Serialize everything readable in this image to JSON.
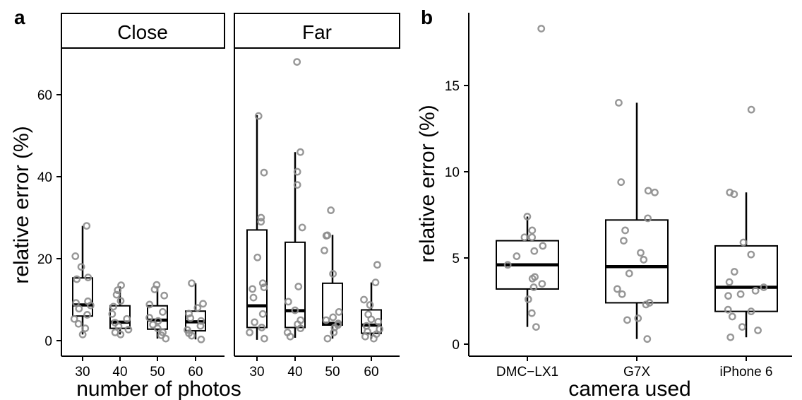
{
  "chart_data": [
    {
      "panel": "a",
      "type": "boxplot",
      "xlabel": "number of photos",
      "ylabel": "relative error (%)",
      "ylim": [
        -2,
        71
      ],
      "yticks": [
        0,
        20,
        40,
        60
      ],
      "grid": false,
      "facets": [
        {
          "label": "Close",
          "categories": [
            "30",
            "40",
            "50",
            "60"
          ],
          "boxes": [
            {
              "q1": 6.0,
              "median": 8.7,
              "q3": 15.3,
              "whisker_low": 1.5,
              "whisker_high": 28.0,
              "points": [
                28.0,
                20.6,
                18.0,
                15.4,
                15.0,
                9.6,
                9.2,
                8.6,
                7.8,
                6.3,
                5.3,
                4.1,
                3.0,
                1.5
              ]
            },
            {
              "q1": 3.0,
              "median": 4.5,
              "q3": 8.5,
              "whisker_low": 1.5,
              "whisker_high": 13.2,
              "points": [
                13.5,
                12.3,
                11.2,
                9.7,
                8.3,
                6.5,
                5.3,
                4.4,
                3.5,
                2.7,
                2.0,
                1.5
              ]
            },
            {
              "q1": 2.8,
              "median": 5.0,
              "q3": 8.5,
              "whisker_low": 0.5,
              "whisker_high": 13.2,
              "points": [
                13.6,
                12.5,
                11.0,
                8.8,
                7.0,
                5.6,
                4.8,
                3.9,
                3.0,
                2.0,
                1.3,
                0.5
              ]
            },
            {
              "q1": 2.4,
              "median": 4.6,
              "q3": 7.2,
              "whisker_low": 0.3,
              "whisker_high": 14.0,
              "points": [
                14.0,
                9.0,
                8.0,
                6.6,
                5.5,
                4.8,
                3.6,
                2.6,
                1.8,
                1.2,
                0.3
              ]
            }
          ]
        },
        {
          "label": "Far",
          "categories": [
            "30",
            "40",
            "50",
            "60"
          ],
          "boxes": [
            {
              "q1": 3.2,
              "median": 8.5,
              "q3": 27.0,
              "whisker_low": 0.2,
              "whisker_high": 55.0,
              "points": [
                54.8,
                41.0,
                30.0,
                29.0,
                20.3,
                14.0,
                13.0,
                12.6,
                10.5,
                6.5,
                4.5,
                3.2,
                2.0,
                0.5
              ]
            },
            {
              "q1": 3.2,
              "median": 7.3,
              "q3": 24.0,
              "whisker_low": 0.7,
              "whisker_high": 46.0,
              "points": [
                68.0,
                46.0,
                41.2,
                38.0,
                27.6,
                13.2,
                9.5,
                7.4,
                5.0,
                4.0,
                3.0,
                2.0,
                1.0
              ]
            },
            {
              "q1": 3.8,
              "median": 4.2,
              "q3": 14.0,
              "whisker_low": 0.5,
              "whisker_high": 25.8,
              "points": [
                31.8,
                25.7,
                25.6,
                22.0,
                16.3,
                7.0,
                5.7,
                5.0,
                4.2,
                3.8,
                3.2,
                2.0,
                0.5
              ]
            },
            {
              "q1": 1.8,
              "median": 3.8,
              "q3": 7.5,
              "whisker_low": 0.5,
              "whisker_high": 14.2,
              "points": [
                18.5,
                14.2,
                10.0,
                8.7,
                6.4,
                5.2,
                4.6,
                3.6,
                2.8,
                2.2,
                1.6,
                1.0,
                0.5
              ]
            }
          ]
        }
      ]
    },
    {
      "panel": "b",
      "type": "boxplot",
      "xlabel": "camera used",
      "ylabel": "relative error (%)",
      "ylim": [
        -0.5,
        19.0
      ],
      "yticks": [
        0,
        5,
        10,
        15
      ],
      "grid": false,
      "categories": [
        "DMC−LX1",
        "G7X",
        "iPhone 6"
      ],
      "boxes": [
        {
          "q1": 3.2,
          "median": 4.6,
          "q3": 6.0,
          "whisker_low": 1.0,
          "whisker_high": 7.4,
          "points": [
            18.3,
            7.4,
            6.6,
            6.2,
            6.2,
            5.7,
            5.4,
            5.1,
            4.6,
            3.9,
            3.8,
            3.5,
            3.3,
            2.6,
            1.8,
            1.0
          ]
        },
        {
          "q1": 2.4,
          "median": 4.5,
          "q3": 7.2,
          "whisker_low": 0.3,
          "whisker_high": 14.0,
          "points": [
            14.0,
            9.4,
            8.9,
            8.8,
            7.3,
            6.6,
            6.0,
            5.3,
            4.9,
            4.1,
            3.2,
            2.9,
            2.4,
            2.3,
            1.5,
            1.4,
            0.3
          ]
        },
        {
          "q1": 1.9,
          "median": 3.3,
          "q3": 5.7,
          "whisker_low": 0.4,
          "whisker_high": 8.8,
          "points": [
            13.6,
            8.8,
            8.7,
            5.9,
            5.2,
            4.2,
            3.6,
            3.3,
            3.1,
            2.9,
            2.8,
            2.0,
            1.9,
            1.6,
            1.0,
            0.8,
            0.4
          ]
        }
      ]
    }
  ],
  "labels": {
    "panel_a": "a",
    "panel_b": "b",
    "strip_close": "Close",
    "strip_far": "Far",
    "a_xlabel": "number of photos",
    "a_ylabel": "relative error (%)",
    "b_xlabel": "camera used",
    "b_ylabel": "relative error (%)"
  },
  "colors": {
    "points": "#8c8c8c",
    "box": "#000000",
    "background": "#ffffff"
  }
}
